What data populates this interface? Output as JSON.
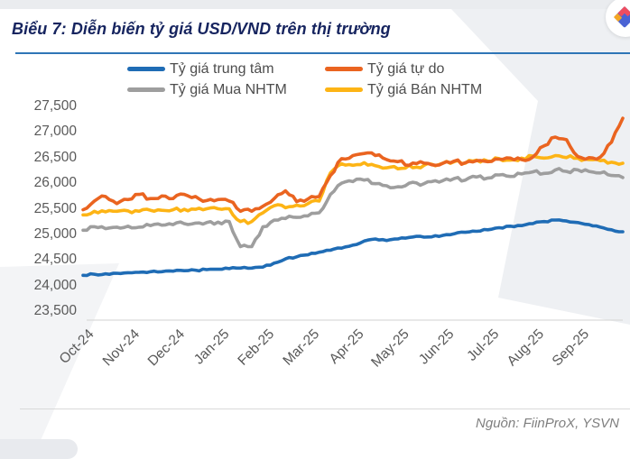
{
  "header": {
    "title": "Biểu 7: Diễn biến tỷ giá USD/VND trên thị trường",
    "title_color": "#16245f",
    "rule_color": "#2e75b6"
  },
  "footer": {
    "source": "Nguồn: FiinProX, YSVN"
  },
  "brand_logo": {
    "name": "fiinprox-logo",
    "red": "#ee4d60",
    "blue": "#4a63d4",
    "yellow": "#f5a623"
  },
  "chart_data": {
    "type": "line",
    "title": "Diễn biến tỷ giá USD/VND trên thị trường",
    "xlabel": "",
    "ylabel": "",
    "grid": false,
    "legend_position": "top",
    "ylim": [
      23500,
      27500
    ],
    "y_ticks": [
      27500,
      27000,
      26500,
      26000,
      25500,
      25000,
      24500,
      24000,
      23500
    ],
    "x_tick_labels": [
      "Oct-24",
      "Nov-24",
      "Dec-24",
      "Jan-25",
      "Feb-25",
      "Mar-25",
      "Apr-25",
      "May-25",
      "Jun-25",
      "Jul-25",
      "Aug-25",
      "Sep-25"
    ],
    "x_months_span": 12,
    "points_per_month": 4,
    "series": [
      {
        "name": "Tỷ giá trung tâm",
        "color": "#1f6cb5",
        "values": [
          24200,
          24220,
          24230,
          24240,
          24250,
          24260,
          24270,
          24270,
          24280,
          24290,
          24300,
          24310,
          24320,
          24330,
          24340,
          24340,
          24360,
          24440,
          24520,
          24560,
          24600,
          24650,
          24690,
          24730,
          24790,
          24870,
          24910,
          24880,
          24910,
          24940,
          24960,
          24950,
          24980,
          25010,
          25040,
          25060,
          25090,
          25130,
          25160,
          25170,
          25210,
          25250,
          25280,
          25260,
          25230,
          25190,
          25140,
          25090,
          25050
        ]
      },
      {
        "name": "Tỷ giá tự do",
        "color": "#ea6420",
        "values": [
          25480,
          25650,
          25740,
          25600,
          25680,
          25780,
          25700,
          25750,
          25700,
          25780,
          25740,
          25660,
          25680,
          25650,
          25450,
          25450,
          25550,
          25700,
          25850,
          25640,
          25690,
          25740,
          26150,
          26480,
          26540,
          26580,
          26540,
          26460,
          26420,
          26350,
          26420,
          26360,
          26390,
          26430,
          26400,
          26440,
          26420,
          26470,
          26490,
          26460,
          26510,
          26730,
          26900,
          26850,
          26520,
          26500,
          26510,
          26800,
          27270
        ]
      },
      {
        "name": "Tỷ giá Mua NHTM",
        "color": "#9e9e9e",
        "values": [
          25080,
          25150,
          25110,
          25140,
          25160,
          25140,
          25170,
          25180,
          25190,
          25210,
          25220,
          25230,
          25240,
          25250,
          24760,
          24760,
          25150,
          25280,
          25310,
          25330,
          25360,
          25420,
          25780,
          26000,
          26030,
          26060,
          25990,
          25950,
          25930,
          26000,
          25960,
          26030,
          26050,
          26090,
          26060,
          26120,
          26100,
          26160,
          26130,
          26180,
          26220,
          26190,
          26260,
          26230,
          26260,
          26230,
          26200,
          26150,
          26110
        ]
      },
      {
        "name": "Tỷ giá Bán NHTM",
        "color": "#fdb415",
        "values": [
          25380,
          25450,
          25440,
          25450,
          25460,
          25450,
          25470,
          25470,
          25480,
          25490,
          25490,
          25500,
          25500,
          25500,
          25250,
          25250,
          25420,
          25560,
          25520,
          25570,
          25600,
          25650,
          26200,
          26380,
          26350,
          26400,
          26340,
          26300,
          26280,
          26350,
          26300,
          26370,
          26390,
          26420,
          26390,
          26450,
          26430,
          26480,
          26450,
          26490,
          26530,
          26490,
          26540,
          26500,
          26490,
          26460,
          26440,
          26410,
          26390
        ]
      }
    ]
  }
}
